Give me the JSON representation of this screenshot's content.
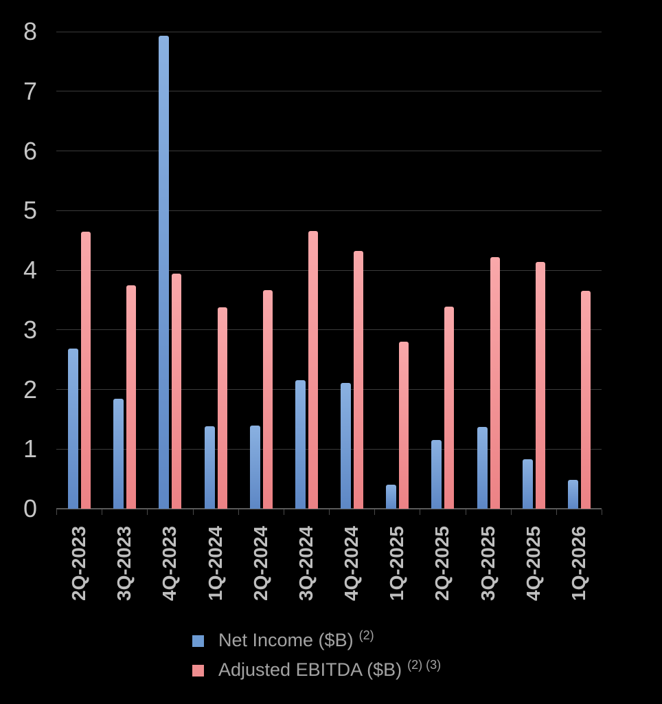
{
  "chart_data": {
    "type": "bar",
    "title": "",
    "xlabel": "",
    "ylabel": "",
    "categories": [
      "2Q-2023",
      "3Q-2023",
      "4Q-2023",
      "1Q-2024",
      "2Q-2024",
      "3Q-2024",
      "4Q-2024",
      "1Q-2025",
      "2Q-2025",
      "3Q-2025",
      "4Q-2025",
      "1Q-2026"
    ],
    "series": [
      {
        "name": "Net Income ($B)",
        "footnote": "(2)",
        "color": "#6d9bd3",
        "gradient_top": "#8ab1e1",
        "gradient_bottom": "#5d87c5",
        "values": [
          2.69,
          1.84,
          7.93,
          1.38,
          1.39,
          2.16,
          2.11,
          0.4,
          1.15,
          1.37,
          0.83,
          0.48
        ]
      },
      {
        "name": "Adjusted EBITDA ($B)",
        "footnote": "(2) (3)",
        "color": "#ef8e90",
        "gradient_top": "#f9a8aa",
        "gradient_bottom": "#ec8285",
        "values": [
          4.64,
          3.75,
          3.94,
          3.38,
          3.66,
          4.66,
          4.32,
          2.8,
          3.39,
          4.22,
          4.14,
          3.65
        ]
      }
    ],
    "ylim": [
      0,
      8
    ],
    "yticks": [
      0,
      1,
      2,
      3,
      4,
      5,
      6,
      7,
      8
    ],
    "grid": "horizontal",
    "legend_position": "bottom",
    "background_color": "#000000",
    "gridline_color": "#3a3a3a",
    "axis_line_color": "#5a5a5a",
    "axis_label_color": "#c6c6c6",
    "category_label_color": "#bfbfbf",
    "legend_text_color": "#a3a3a3"
  }
}
